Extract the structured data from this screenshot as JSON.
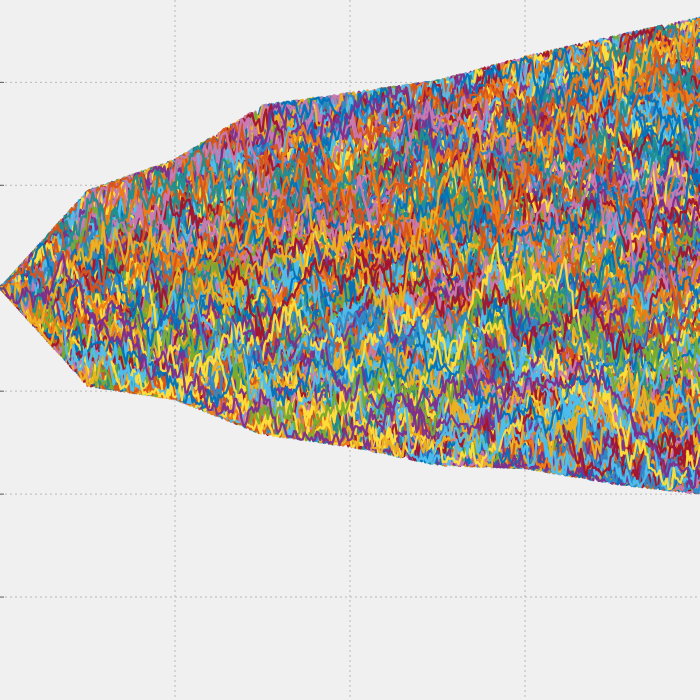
{
  "chart_data": {
    "type": "line",
    "title": "",
    "xlabel": "",
    "ylabel": "",
    "grid": true,
    "xlim": [
      0,
      400
    ],
    "ylim": [
      -4,
      2.8
    ],
    "x_gridlines": [
      100,
      200,
      300
    ],
    "y_gridlines": [
      -3,
      -2,
      -1,
      0,
      1,
      2
    ],
    "num_series": 700,
    "steps": 400,
    "start_value": 0,
    "palette": [
      "#0072bd",
      "#d95319",
      "#edb120",
      "#7e2f8e",
      "#77ac30",
      "#4dbeee",
      "#a2142f",
      "#c97ab2",
      "#1f8f8f",
      "#ffdf3a",
      "#2f88c8",
      "#ef7d13"
    ],
    "envelope": {
      "upper": [
        {
          "x": 0,
          "y": 0.0
        },
        {
          "x": 50,
          "y": 0.95
        },
        {
          "x": 100,
          "y": 1.25
        },
        {
          "x": 150,
          "y": 1.78
        },
        {
          "x": 200,
          "y": 1.9
        },
        {
          "x": 250,
          "y": 2.02
        },
        {
          "x": 300,
          "y": 2.25
        },
        {
          "x": 350,
          "y": 2.45
        },
        {
          "x": 400,
          "y": 2.63
        }
      ],
      "lower": [
        {
          "x": 0,
          "y": 0.0
        },
        {
          "x": 50,
          "y": -0.95
        },
        {
          "x": 100,
          "y": -1.08
        },
        {
          "x": 150,
          "y": -1.42
        },
        {
          "x": 200,
          "y": -1.54
        },
        {
          "x": 250,
          "y": -1.72
        },
        {
          "x": 300,
          "y": -1.75
        },
        {
          "x": 350,
          "y": -1.9
        },
        {
          "x": 400,
          "y": -2.0
        }
      ]
    }
  }
}
